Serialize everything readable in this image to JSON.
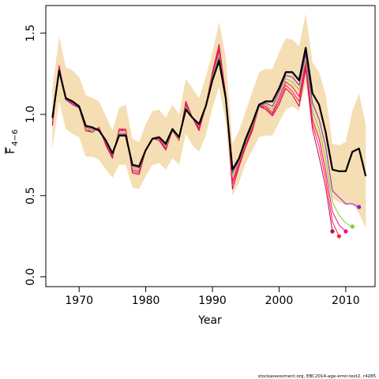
{
  "chart_data": {
    "type": "line",
    "title": "",
    "xlabel": "Year",
    "ylabel": {
      "main": "F",
      "sub": "4−6"
    },
    "xlim": [
      1965,
      2014.4
    ],
    "ylim": [
      -0.06,
      1.67
    ],
    "x_ticks": [
      1970,
      1980,
      1990,
      2000,
      2010
    ],
    "x_tick_labels": [
      "1970",
      "1980",
      "1990",
      "2000",
      "2010"
    ],
    "y_ticks": [
      0.0,
      0.5,
      1.0,
      1.5
    ],
    "y_tick_labels": [
      "0.0",
      "0.5",
      "1.0",
      "1.5"
    ],
    "grid": false,
    "footnote": "stockassessment.org, EBC2014-age-error-test2, r4285",
    "colors": {
      "band": "#f5deb3",
      "main": "#000000",
      "peel_1": "#9a18c8",
      "peel_2": "#7ed321",
      "peel_3": "#ff007f",
      "peel_4": "#ff1f3a",
      "peel_5": "#c0006a"
    },
    "band": {
      "x": [
        1966,
        1967,
        1968,
        1969,
        1970,
        1971,
        1972,
        1973,
        1974,
        1975,
        1976,
        1977,
        1978,
        1979,
        1980,
        1981,
        1982,
        1983,
        1984,
        1985,
        1986,
        1987,
        1988,
        1989,
        1990,
        1991,
        1992,
        1993,
        1994,
        1995,
        1996,
        1997,
        1998,
        1999,
        2000,
        2001,
        2002,
        2003,
        2004,
        2005,
        2006,
        2007,
        2008,
        2009,
        2010,
        2011,
        2012,
        2013
      ],
      "upper": [
        1.16,
        1.48,
        1.29,
        1.27,
        1.23,
        1.12,
        1.1,
        1.08,
        0.99,
        0.9,
        1.04,
        1.06,
        0.85,
        0.83,
        0.94,
        1.02,
        1.03,
        0.98,
        1.06,
        1.0,
        1.22,
        1.16,
        1.1,
        1.23,
        1.38,
        1.57,
        1.35,
        0.82,
        0.9,
        1.02,
        1.14,
        1.26,
        1.28,
        1.28,
        1.38,
        1.47,
        1.46,
        1.42,
        1.62,
        1.32,
        1.26,
        1.12,
        0.82,
        0.81,
        0.83,
        1.02,
        1.13,
        0.94
      ],
      "lower": [
        0.79,
        1.08,
        0.91,
        0.88,
        0.86,
        0.74,
        0.74,
        0.72,
        0.66,
        0.61,
        0.69,
        0.69,
        0.55,
        0.54,
        0.62,
        0.69,
        0.7,
        0.66,
        0.73,
        0.69,
        0.88,
        0.81,
        0.77,
        0.87,
        1.04,
        1.17,
        0.95,
        0.5,
        0.58,
        0.7,
        0.78,
        0.86,
        0.87,
        0.87,
        0.95,
        1.03,
        1.05,
        1.02,
        1.19,
        0.93,
        0.84,
        0.62,
        0.48,
        0.46,
        0.44,
        0.45,
        0.39,
        0.3
      ]
    },
    "series": [
      {
        "x": [
          1966,
          1967,
          1968,
          1969,
          1970,
          1971,
          1972,
          1973,
          1974,
          1975,
          1976,
          1977,
          1978,
          1979,
          1980,
          1981,
          1982,
          1983,
          1984,
          1985,
          1986,
          1987,
          1988,
          1989,
          1990,
          1991,
          1992,
          1993,
          1994,
          1995,
          1996,
          1997,
          1998,
          1999,
          2000,
          2001,
          2002,
          2003,
          2004,
          2005,
          2006,
          2007,
          2008,
          2009,
          2010,
          2011,
          2012,
          2013
        ],
        "values": [
          0.98,
          1.27,
          1.1,
          1.08,
          1.05,
          0.93,
          0.92,
          0.9,
          0.84,
          0.76,
          0.87,
          0.87,
          0.69,
          0.68,
          0.78,
          0.85,
          0.86,
          0.82,
          0.91,
          0.86,
          1.03,
          0.98,
          0.94,
          1.05,
          1.21,
          1.33,
          1.1,
          0.66,
          0.73,
          0.85,
          0.95,
          1.06,
          1.08,
          1.08,
          1.16,
          1.26,
          1.26,
          1.21,
          1.41,
          1.13,
          1.06,
          0.89,
          0.66,
          0.65,
          0.65,
          0.77,
          0.79,
          0.62
        ],
        "color_key": "main",
        "width": 2.2,
        "end_marker": false
      },
      {
        "x": [
          1966,
          1967,
          1968,
          1969,
          1970,
          1971,
          1972,
          1973,
          1974,
          1975,
          1976,
          1977,
          1978,
          1979,
          1980,
          1981,
          1982,
          1983,
          1984,
          1985,
          1986,
          1987,
          1988,
          1989,
          1990,
          1991,
          1992,
          1993,
          1994,
          1995,
          1996,
          1997,
          1998,
          1999,
          2000,
          2001,
          2002,
          2003,
          2004,
          2005,
          2006,
          2007,
          2008,
          2009,
          2010,
          2011,
          2012
        ],
        "values": [
          0.97,
          1.28,
          1.09,
          1.07,
          1.04,
          0.92,
          0.91,
          0.91,
          0.84,
          0.76,
          0.88,
          0.88,
          0.68,
          0.67,
          0.78,
          0.85,
          0.86,
          0.81,
          0.9,
          0.86,
          1.04,
          0.98,
          0.94,
          1.05,
          1.22,
          1.35,
          1.1,
          0.64,
          0.72,
          0.84,
          0.94,
          1.05,
          1.07,
          1.05,
          1.14,
          1.24,
          1.23,
          1.18,
          1.37,
          1.07,
          0.97,
          0.8,
          0.53,
          0.49,
          0.45,
          0.45,
          0.43
        ],
        "color_key": "peel_1",
        "width": 1,
        "end_marker": true
      },
      {
        "x": [
          1966,
          1967,
          1968,
          1969,
          1970,
          1971,
          1972,
          1973,
          1974,
          1975,
          1976,
          1977,
          1978,
          1979,
          1980,
          1981,
          1982,
          1983,
          1984,
          1985,
          1986,
          1987,
          1988,
          1989,
          1990,
          1991,
          1992,
          1993,
          1994,
          1995,
          1996,
          1997,
          1998,
          1999,
          2000,
          2001,
          2002,
          2003,
          2004,
          2005,
          2006,
          2007,
          2008,
          2009,
          2010,
          2011
        ],
        "values": [
          0.96,
          1.28,
          1.09,
          1.07,
          1.04,
          0.91,
          0.9,
          0.91,
          0.83,
          0.75,
          0.89,
          0.89,
          0.67,
          0.66,
          0.78,
          0.85,
          0.86,
          0.8,
          0.9,
          0.85,
          1.05,
          0.98,
          0.93,
          1.05,
          1.23,
          1.37,
          1.1,
          0.62,
          0.71,
          0.83,
          0.93,
          1.05,
          1.06,
          1.03,
          1.12,
          1.22,
          1.2,
          1.15,
          1.34,
          1.02,
          0.91,
          0.72,
          0.46,
          0.38,
          0.33,
          0.31
        ],
        "color_key": "peel_2",
        "width": 1,
        "end_marker": true
      },
      {
        "x": [
          1966,
          1967,
          1968,
          1969,
          1970,
          1971,
          1972,
          1973,
          1974,
          1975,
          1976,
          1977,
          1978,
          1979,
          1980,
          1981,
          1982,
          1983,
          1984,
          1985,
          1986,
          1987,
          1988,
          1989,
          1990,
          1991,
          1992,
          1993,
          1994,
          1995,
          1996,
          1997,
          1998,
          1999,
          2000,
          2001,
          2002,
          2003,
          2004,
          2005,
          2006,
          2007,
          2008,
          2009,
          2010
        ],
        "values": [
          0.95,
          1.29,
          1.09,
          1.07,
          1.04,
          0.91,
          0.9,
          0.91,
          0.82,
          0.74,
          0.9,
          0.9,
          0.66,
          0.65,
          0.78,
          0.85,
          0.85,
          0.79,
          0.9,
          0.85,
          1.06,
          0.98,
          0.92,
          1.05,
          1.24,
          1.39,
          1.11,
          0.59,
          0.7,
          0.82,
          0.92,
          1.05,
          1.05,
          1.01,
          1.1,
          1.2,
          1.17,
          1.11,
          1.32,
          0.97,
          0.85,
          0.65,
          0.4,
          0.32,
          0.28
        ],
        "color_key": "peel_3",
        "width": 1,
        "end_marker": true
      },
      {
        "x": [
          1966,
          1967,
          1968,
          1969,
          1970,
          1971,
          1972,
          1973,
          1974,
          1975,
          1976,
          1977,
          1978,
          1979,
          1980,
          1981,
          1982,
          1983,
          1984,
          1985,
          1986,
          1987,
          1988,
          1989,
          1990,
          1991,
          1992,
          1993,
          1994,
          1995,
          1996,
          1997,
          1998,
          1999,
          2000,
          2001,
          2002,
          2003,
          2004,
          2005,
          2006,
          2007,
          2008,
          2009
        ],
        "values": [
          0.94,
          1.29,
          1.09,
          1.06,
          1.04,
          0.9,
          0.9,
          0.92,
          0.82,
          0.74,
          0.9,
          0.91,
          0.65,
          0.64,
          0.78,
          0.85,
          0.85,
          0.79,
          0.9,
          0.84,
          1.07,
          0.98,
          0.91,
          1.05,
          1.25,
          1.41,
          1.11,
          0.57,
          0.69,
          0.81,
          0.91,
          1.05,
          1.04,
          1.0,
          1.08,
          1.18,
          1.14,
          1.08,
          1.3,
          0.94,
          0.8,
          0.6,
          0.34,
          0.25
        ],
        "color_key": "peel_4",
        "width": 1,
        "end_marker": true
      },
      {
        "x": [
          1966,
          1967,
          1968,
          1969,
          1970,
          1971,
          1972,
          1973,
          1974,
          1975,
          1976,
          1977,
          1978,
          1979,
          1980,
          1981,
          1982,
          1983,
          1984,
          1985,
          1986,
          1987,
          1988,
          1989,
          1990,
          1991,
          1992,
          1993,
          1994,
          1995,
          1996,
          1997,
          1998,
          1999,
          2000,
          2001,
          2002,
          2003,
          2004,
          2005,
          2006,
          2007,
          2008
        ],
        "values": [
          0.93,
          1.3,
          1.09,
          1.06,
          1.04,
          0.9,
          0.89,
          0.92,
          0.81,
          0.73,
          0.91,
          0.91,
          0.64,
          0.63,
          0.78,
          0.85,
          0.84,
          0.78,
          0.9,
          0.84,
          1.08,
          0.98,
          0.9,
          1.05,
          1.26,
          1.43,
          1.12,
          0.54,
          0.68,
          0.8,
          0.9,
          1.05,
          1.03,
          0.99,
          1.06,
          1.16,
          1.12,
          1.05,
          1.28,
          0.91,
          0.74,
          0.55,
          0.28
        ],
        "color_key": "peel_5",
        "width": 1,
        "end_marker": true
      }
    ]
  }
}
